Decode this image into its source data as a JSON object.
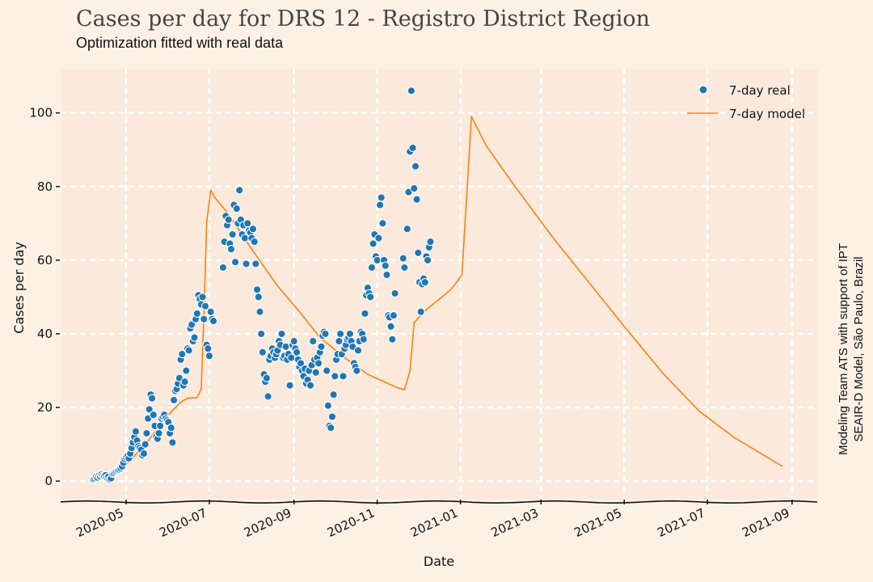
{
  "chart_data": {
    "type": "scatter+line",
    "title": "Cases per day for DRS 12 - Registro District Region",
    "subtitle": "Optimization fitted with real data",
    "xlabel": "Date",
    "ylabel": "Cases per day",
    "credit_line1": "Modeling Team ATS with support of IPT",
    "credit_line2": "SEAIR-D Model, São Paulo, Brazil",
    "xlim": [
      "2020-03-14",
      "2021-09-20"
    ],
    "ylim": [
      -5,
      112
    ],
    "x_ticks": [
      "2020-05",
      "2020-07",
      "2020-09",
      "2020-11",
      "2021-01",
      "2021-03",
      "2021-05",
      "2021-07",
      "2021-09"
    ],
    "y_ticks": [
      0,
      20,
      40,
      60,
      80,
      100
    ],
    "grid": true,
    "legend_position": "top-right",
    "colors": {
      "real": "#1f77b4",
      "model": "#ff7f0e",
      "background": "#fdf1e6",
      "plot_area": "#fbe9dc",
      "grid": "#ffffff"
    },
    "series": [
      {
        "name": "7-day real",
        "kind": "scatter",
        "points": [
          [
            "2020-04-07",
            0.5
          ],
          [
            "2020-04-08",
            0.8
          ],
          [
            "2020-04-09",
            1.2
          ],
          [
            "2020-04-10",
            1.0
          ],
          [
            "2020-04-11",
            1.5
          ],
          [
            "2020-04-12",
            1.3
          ],
          [
            "2020-04-13",
            1.8
          ],
          [
            "2020-04-14",
            1.5
          ],
          [
            "2020-04-15",
            1.4
          ],
          [
            "2020-04-16",
            1.6
          ],
          [
            "2020-04-17",
            1.0
          ],
          [
            "2020-04-18",
            1.2
          ],
          [
            "2020-04-19",
            0.5
          ],
          [
            "2020-04-20",
            0.8
          ],
          [
            "2020-04-21",
            2.0
          ],
          [
            "2020-04-22",
            2.2
          ],
          [
            "2020-04-23",
            2.5
          ],
          [
            "2020-04-24",
            2.8
          ],
          [
            "2020-04-25",
            3.0
          ],
          [
            "2020-04-26",
            3.2
          ],
          [
            "2020-04-27",
            3.5
          ],
          [
            "2020-04-28",
            4.0
          ],
          [
            "2020-04-29",
            5.0
          ],
          [
            "2020-04-30",
            6.0
          ],
          [
            "2020-05-01",
            6.5
          ],
          [
            "2020-05-02",
            6.8
          ],
          [
            "2020-05-03",
            6.2
          ],
          [
            "2020-05-04",
            7.5
          ],
          [
            "2020-05-05",
            9.0
          ],
          [
            "2020-05-06",
            10.5
          ],
          [
            "2020-05-07",
            12.0
          ],
          [
            "2020-05-08",
            13.5
          ],
          [
            "2020-05-09",
            11.0
          ],
          [
            "2020-05-10",
            9.5
          ],
          [
            "2020-05-11",
            9.0
          ],
          [
            "2020-05-12",
            8.5
          ],
          [
            "2020-05-13",
            7.0
          ],
          [
            "2020-05-14",
            7.5
          ],
          [
            "2020-05-15",
            10.0
          ],
          [
            "2020-05-16",
            13.0
          ],
          [
            "2020-05-17",
            17.0
          ],
          [
            "2020-05-18",
            19.5
          ],
          [
            "2020-05-19",
            23.5
          ],
          [
            "2020-05-20",
            22.5
          ],
          [
            "2020-05-21",
            18.0
          ],
          [
            "2020-05-22",
            15.0
          ],
          [
            "2020-05-23",
            12.0
          ],
          [
            "2020-05-24",
            11.5
          ],
          [
            "2020-05-25",
            13.0
          ],
          [
            "2020-05-26",
            15.0
          ],
          [
            "2020-05-27",
            17.0
          ],
          [
            "2020-05-28",
            17.5
          ],
          [
            "2020-05-29",
            18.0
          ],
          [
            "2020-05-30",
            17.0
          ],
          [
            "2020-05-31",
            16.5
          ],
          [
            "2020-06-01",
            16.0
          ],
          [
            "2020-06-02",
            13.0
          ],
          [
            "2020-06-03",
            14.5
          ],
          [
            "2020-06-04",
            10.5
          ],
          [
            "2020-06-05",
            22.0
          ],
          [
            "2020-06-06",
            24.5
          ],
          [
            "2020-06-07",
            25.0
          ],
          [
            "2020-06-08",
            26.5
          ],
          [
            "2020-06-09",
            28.0
          ],
          [
            "2020-06-10",
            33.0
          ],
          [
            "2020-06-11",
            34.5
          ],
          [
            "2020-06-12",
            26.0
          ],
          [
            "2020-06-13",
            27.0
          ],
          [
            "2020-06-14",
            30.0
          ],
          [
            "2020-06-15",
            36.0
          ],
          [
            "2020-06-16",
            35.5
          ],
          [
            "2020-06-17",
            41.5
          ],
          [
            "2020-06-18",
            42.5
          ],
          [
            "2020-06-19",
            38.0
          ],
          [
            "2020-06-20",
            39.0
          ],
          [
            "2020-06-21",
            44.0
          ],
          [
            "2020-06-22",
            45.5
          ],
          [
            "2020-06-23",
            50.5
          ],
          [
            "2020-06-24",
            49.5
          ],
          [
            "2020-06-25",
            48.0
          ],
          [
            "2020-06-26",
            50.0
          ],
          [
            "2020-06-27",
            44.0
          ],
          [
            "2020-06-28",
            47.5
          ],
          [
            "2020-06-29",
            37.0
          ],
          [
            "2020-06-30",
            36.0
          ],
          [
            "2020-07-01",
            34.0
          ],
          [
            "2020-07-02",
            46.0
          ],
          [
            "2020-07-03",
            44.0
          ],
          [
            "2020-07-04",
            43.5
          ],
          [
            "2020-07-11",
            58.0
          ],
          [
            "2020-07-12",
            65.0
          ],
          [
            "2020-07-13",
            72.0
          ],
          [
            "2020-07-14",
            69.5
          ],
          [
            "2020-07-15",
            71.0
          ],
          [
            "2020-07-16",
            64.5
          ],
          [
            "2020-07-17",
            63.0
          ],
          [
            "2020-07-18",
            67.0
          ],
          [
            "2020-07-19",
            75.0
          ],
          [
            "2020-07-20",
            59.5
          ],
          [
            "2020-07-21",
            74.0
          ],
          [
            "2020-07-22",
            70.0
          ],
          [
            "2020-07-23",
            79.0
          ],
          [
            "2020-07-24",
            71.0
          ],
          [
            "2020-07-25",
            67.0
          ],
          [
            "2020-07-26",
            69.5
          ],
          [
            "2020-07-27",
            66.0
          ],
          [
            "2020-07-28",
            59.0
          ],
          [
            "2020-07-29",
            70.0
          ],
          [
            "2020-07-30",
            68.0
          ],
          [
            "2020-07-31",
            67.5
          ],
          [
            "2020-08-01",
            66.0
          ],
          [
            "2020-08-02",
            68.5
          ],
          [
            "2020-08-03",
            65.0
          ],
          [
            "2020-08-04",
            59.0
          ],
          [
            "2020-08-05",
            52.0
          ],
          [
            "2020-08-06",
            50.0
          ],
          [
            "2020-08-07",
            46.0
          ],
          [
            "2020-08-08",
            40.0
          ],
          [
            "2020-08-09",
            35.0
          ],
          [
            "2020-08-10",
            29.0
          ],
          [
            "2020-08-11",
            27.0
          ],
          [
            "2020-08-12",
            28.0
          ],
          [
            "2020-08-13",
            23.0
          ],
          [
            "2020-08-14",
            33.0
          ],
          [
            "2020-08-15",
            34.0
          ],
          [
            "2020-08-16",
            36.0
          ],
          [
            "2020-08-17",
            35.0
          ],
          [
            "2020-08-18",
            33.5
          ],
          [
            "2020-08-19",
            34.5
          ],
          [
            "2020-08-20",
            35.5
          ],
          [
            "2020-08-21",
            38.0
          ],
          [
            "2020-08-22",
            37.0
          ],
          [
            "2020-08-23",
            40.0
          ],
          [
            "2020-08-24",
            33.5
          ],
          [
            "2020-08-25",
            34.0
          ],
          [
            "2020-08-26",
            36.5
          ],
          [
            "2020-08-27",
            33.0
          ],
          [
            "2020-08-28",
            34.5
          ],
          [
            "2020-08-29",
            26.0
          ],
          [
            "2020-08-30",
            33.5
          ],
          [
            "2020-08-31",
            37.0
          ],
          [
            "2020-09-01",
            38.0
          ],
          [
            "2020-09-02",
            36.0
          ],
          [
            "2020-09-03",
            35.0
          ],
          [
            "2020-09-04",
            33.0
          ],
          [
            "2020-09-05",
            31.0
          ],
          [
            "2020-09-06",
            32.0
          ],
          [
            "2020-09-07",
            30.0
          ],
          [
            "2020-09-08",
            28.5
          ],
          [
            "2020-09-09",
            30.5
          ],
          [
            "2020-09-10",
            26.5
          ],
          [
            "2020-09-11",
            27.5
          ],
          [
            "2020-09-12",
            30.0
          ],
          [
            "2020-09-13",
            26.0
          ],
          [
            "2020-09-14",
            31.5
          ],
          [
            "2020-09-15",
            38.0
          ],
          [
            "2020-09-16",
            33.0
          ],
          [
            "2020-09-17",
            29.5
          ],
          [
            "2020-09-18",
            33.5
          ],
          [
            "2020-09-19",
            32.0
          ],
          [
            "2020-09-20",
            35.0
          ],
          [
            "2020-09-21",
            36.5
          ],
          [
            "2020-09-22",
            39.5
          ],
          [
            "2020-09-23",
            40.5
          ],
          [
            "2020-09-24",
            40.0
          ],
          [
            "2020-09-25",
            30.0
          ],
          [
            "2020-09-26",
            20.5
          ],
          [
            "2020-09-27",
            15.0
          ],
          [
            "2020-09-28",
            14.5
          ],
          [
            "2020-09-29",
            17.5
          ],
          [
            "2020-09-30",
            23.5
          ],
          [
            "2020-10-01",
            28.5
          ],
          [
            "2020-10-02",
            33.0
          ],
          [
            "2020-10-03",
            34.5
          ],
          [
            "2020-10-04",
            38.0
          ],
          [
            "2020-10-05",
            40.0
          ],
          [
            "2020-10-06",
            34.5
          ],
          [
            "2020-10-07",
            28.5
          ],
          [
            "2020-10-08",
            36.0
          ],
          [
            "2020-10-09",
            37.0
          ],
          [
            "2020-10-10",
            38.5
          ],
          [
            "2020-10-11",
            39.0
          ],
          [
            "2020-10-12",
            40.0
          ],
          [
            "2020-10-13",
            38.0
          ],
          [
            "2020-10-14",
            36.5
          ],
          [
            "2020-10-15",
            32.0
          ],
          [
            "2020-10-16",
            31.0
          ],
          [
            "2020-10-17",
            30.0
          ],
          [
            "2020-10-18",
            35.5
          ],
          [
            "2020-10-19",
            38.0
          ],
          [
            "2020-10-20",
            40.5
          ],
          [
            "2020-10-21",
            40.0
          ],
          [
            "2020-10-22",
            38.5
          ],
          [
            "2020-10-23",
            45.5
          ],
          [
            "2020-10-24",
            50.5
          ],
          [
            "2020-10-25",
            52.5
          ],
          [
            "2020-10-26",
            51.0
          ],
          [
            "2020-10-27",
            50.0
          ],
          [
            "2020-10-28",
            58.0
          ],
          [
            "2020-10-29",
            64.5
          ],
          [
            "2020-10-30",
            67.0
          ],
          [
            "2020-10-31",
            61.0
          ],
          [
            "2020-11-01",
            60.0
          ],
          [
            "2020-11-02",
            66.0
          ],
          [
            "2020-11-03",
            75.0
          ],
          [
            "2020-11-04",
            77.0
          ],
          [
            "2020-11-05",
            70.0
          ],
          [
            "2020-11-06",
            60.0
          ],
          [
            "2020-11-07",
            58.5
          ],
          [
            "2020-11-08",
            56.0
          ],
          [
            "2020-11-09",
            45.0
          ],
          [
            "2020-11-10",
            44.5
          ],
          [
            "2020-11-11",
            42.0
          ],
          [
            "2020-11-12",
            38.5
          ],
          [
            "2020-11-13",
            45.0
          ],
          [
            "2020-11-14",
            51.0
          ],
          [
            "2020-11-20",
            60.5
          ],
          [
            "2020-11-21",
            58.0
          ],
          [
            "2020-11-23",
            68.5
          ],
          [
            "2020-11-24",
            78.5
          ],
          [
            "2020-11-25",
            89.5
          ],
          [
            "2020-11-26",
            106.0
          ],
          [
            "2020-11-27",
            90.5
          ],
          [
            "2020-11-28",
            79.5
          ],
          [
            "2020-11-29",
            85.5
          ],
          [
            "2020-11-30",
            76.5
          ],
          [
            "2020-12-01",
            62.0
          ],
          [
            "2020-12-02",
            54.0
          ],
          [
            "2020-12-03",
            46.0
          ],
          [
            "2020-12-04",
            53.5
          ],
          [
            "2020-12-05",
            55.0
          ],
          [
            "2020-12-06",
            54.0
          ],
          [
            "2020-12-07",
            61.0
          ],
          [
            "2020-12-08",
            60.0
          ],
          [
            "2020-12-09",
            63.5
          ],
          [
            "2020-12-10",
            65.0
          ]
        ]
      },
      {
        "name": "7-day model",
        "kind": "line",
        "points": [
          [
            "2020-04-07",
            0.0
          ],
          [
            "2020-04-20",
            1.5
          ],
          [
            "2020-05-01",
            4.5
          ],
          [
            "2020-05-15",
            10.0
          ],
          [
            "2020-06-01",
            18.0
          ],
          [
            "2020-06-10",
            21.5
          ],
          [
            "2020-06-15",
            22.5
          ],
          [
            "2020-06-22",
            22.7
          ],
          [
            "2020-06-25",
            25.0
          ],
          [
            "2020-06-27",
            45.0
          ],
          [
            "2020-06-29",
            70.0
          ],
          [
            "2020-07-02",
            79.0
          ],
          [
            "2020-07-05",
            77.0
          ],
          [
            "2020-07-15",
            72.5
          ],
          [
            "2020-08-01",
            63.0
          ],
          [
            "2020-08-20",
            53.0
          ],
          [
            "2020-09-05",
            46.0
          ],
          [
            "2020-09-20",
            39.0
          ],
          [
            "2020-10-10",
            33.0
          ],
          [
            "2020-10-25",
            29.0
          ],
          [
            "2020-11-15",
            25.5
          ],
          [
            "2020-11-21",
            24.8
          ],
          [
            "2020-11-25",
            30.0
          ],
          [
            "2020-11-28",
            43.0
          ],
          [
            "2020-12-05",
            46.0
          ],
          [
            "2020-12-25",
            52.0
          ],
          [
            "2021-01-02",
            56.0
          ],
          [
            "2021-01-06",
            80.0
          ],
          [
            "2021-01-09",
            99.0
          ],
          [
            "2021-01-20",
            91.0
          ],
          [
            "2021-02-10",
            80.0
          ],
          [
            "2021-03-10",
            66.0
          ],
          [
            "2021-04-05",
            54.0
          ],
          [
            "2021-05-01",
            42.0
          ],
          [
            "2021-05-30",
            29.0
          ],
          [
            "2021-06-25",
            19.0
          ],
          [
            "2021-07-20",
            12.0
          ],
          [
            "2021-08-25",
            4.0
          ]
        ]
      }
    ]
  }
}
